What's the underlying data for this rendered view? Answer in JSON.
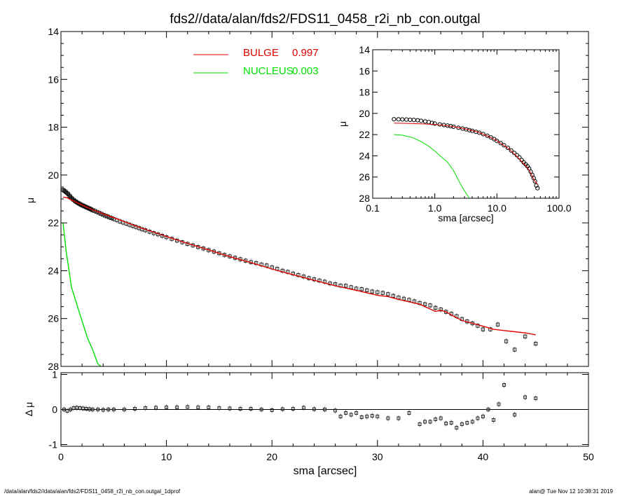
{
  "figure_title": "fds2//data/alan/fds2/FDS11_0458_r2i_nb_con.outgal",
  "footer": {
    "left": "/data/alan/fds2//data/alan/fds2/FDS11_0458_r2i_nb_con.outgal_1dprof",
    "right": "alan@  Tue Nov 12 10:38:31 2019"
  },
  "colors": {
    "bulge": "#e00000",
    "nucleus": "#00e000",
    "data": "#000000"
  },
  "chart_data": [
    {
      "name": "main_profile",
      "type": "line",
      "title": "",
      "xlabel": "",
      "ylabel": "μ",
      "xlim": [
        0,
        50
      ],
      "ylim": [
        28,
        14
      ],
      "y_inverted": true,
      "x_ticks_labeled": false,
      "y_ticks": [
        14,
        16,
        18,
        20,
        22,
        24,
        26,
        28
      ],
      "y_tick_labels": [
        "14",
        "16",
        "18",
        "20",
        "22",
        "24",
        "26",
        "28"
      ],
      "legend": [
        {
          "label": "BULGE",
          "value": "0.997",
          "color": "#e00000"
        },
        {
          "label": "NUCLEUS",
          "value": "0.003",
          "color": "#00e000"
        }
      ],
      "legend_placement": "top-center",
      "series": [
        {
          "name": "data",
          "style": "open-square-errorbars",
          "x": [
            0.2,
            0.3,
            0.4,
            0.5,
            0.6,
            0.7,
            0.8,
            0.9,
            1.0,
            1.1,
            1.2,
            1.3,
            1.4,
            1.5,
            1.6,
            1.7,
            1.8,
            1.9,
            2.0,
            2.1,
            2.2,
            2.3,
            2.4,
            2.5,
            2.6,
            2.7,
            2.8,
            2.9,
            3.0,
            3.2,
            3.4,
            3.6,
            3.8,
            4.0,
            4.2,
            4.4,
            4.6,
            4.8,
            5.0,
            5.3,
            5.6,
            5.9,
            6.2,
            6.5,
            6.8,
            7.1,
            7.4,
            7.7,
            8.0,
            8.4,
            8.8,
            9.2,
            9.6,
            10.0,
            10.5,
            11.0,
            11.5,
            12.0,
            12.5,
            13.0,
            13.5,
            14.0,
            14.5,
            15.0,
            15.5,
            16.0,
            16.5,
            17.0,
            17.5,
            18.0,
            18.5,
            19.0,
            19.5,
            20.0,
            20.5,
            21.0,
            21.5,
            22.0,
            22.5,
            23.0,
            23.5,
            24.0,
            24.5,
            25.0,
            25.5,
            26.0,
            26.5,
            27.0,
            27.5,
            28.0,
            28.5,
            29.0,
            29.5,
            30.0,
            30.5,
            31.0,
            31.5,
            32.0,
            32.5,
            33.0,
            33.5,
            34.0,
            34.5,
            35.0,
            35.5,
            36.0,
            36.5,
            37.0,
            37.5,
            38.0,
            38.5,
            39.0,
            39.5,
            40.0,
            40.7,
            41.4,
            42.2,
            43.0,
            44.0,
            45.0
          ],
          "y": [
            20.62,
            20.65,
            20.68,
            20.72,
            20.76,
            20.8,
            20.86,
            20.9,
            20.96,
            21.0,
            21.04,
            21.08,
            21.1,
            21.14,
            21.16,
            21.19,
            21.21,
            21.24,
            21.26,
            21.28,
            21.3,
            21.32,
            21.34,
            21.36,
            21.38,
            21.4,
            21.42,
            21.44,
            21.47,
            21.5,
            21.54,
            21.58,
            21.62,
            21.66,
            21.7,
            21.73,
            21.77,
            21.8,
            21.84,
            21.89,
            21.94,
            21.99,
            22.03,
            22.08,
            22.13,
            22.17,
            22.22,
            22.27,
            22.31,
            22.37,
            22.43,
            22.48,
            22.54,
            22.6,
            22.67,
            22.74,
            22.81,
            22.88,
            22.94,
            23.01,
            23.07,
            23.14,
            23.2,
            23.27,
            23.34,
            23.4,
            23.46,
            23.52,
            23.58,
            23.64,
            23.68,
            23.74,
            23.78,
            23.86,
            23.92,
            24.0,
            24.05,
            24.12,
            24.18,
            24.24,
            24.31,
            24.36,
            24.41,
            24.46,
            24.53,
            24.56,
            24.62,
            24.63,
            24.69,
            24.75,
            24.77,
            24.82,
            24.87,
            24.9,
            24.93,
            24.98,
            25.05,
            25.12,
            25.17,
            25.22,
            25.28,
            25.35,
            25.4,
            25.45,
            25.55,
            25.62,
            25.72,
            25.8,
            25.9,
            26.02,
            26.12,
            26.2,
            26.3,
            26.45,
            26.45,
            26.25,
            26.95,
            27.3,
            26.75,
            27.05
          ]
        },
        {
          "name": "BULGE",
          "style": "line",
          "color": "#e00000",
          "x": [
            0.2,
            0.6,
            1.0,
            1.5,
            2.0,
            2.5,
            3.0,
            4.0,
            5.0,
            6.0,
            7.0,
            8.0,
            9.0,
            10.0,
            12.0,
            14.0,
            16.0,
            18.0,
            20.0,
            22.0,
            24.0,
            26.0,
            28.0,
            30.0,
            31.0,
            32.0,
            33.0,
            34.0,
            35.0,
            35.5,
            36.0,
            36.5,
            37.0,
            38.0,
            39.0,
            40.0,
            41.0,
            42.0,
            43.0,
            44.0,
            45.0
          ],
          "y": [
            20.92,
            20.95,
            21.05,
            21.15,
            21.25,
            21.35,
            21.45,
            21.62,
            21.78,
            21.95,
            22.12,
            22.27,
            22.42,
            22.57,
            22.86,
            23.13,
            23.41,
            23.66,
            23.93,
            24.17,
            24.4,
            24.63,
            24.82,
            25.03,
            25.08,
            25.2,
            25.3,
            25.4,
            25.6,
            25.7,
            25.65,
            25.72,
            25.85,
            26.08,
            26.2,
            26.32,
            26.45,
            26.5,
            26.55,
            26.6,
            26.68
          ]
        },
        {
          "name": "NUCLEUS",
          "style": "line",
          "color": "#00e000",
          "x": [
            0.2,
            0.5,
            1.0,
            1.5,
            2.0,
            2.5,
            3.0,
            3.5,
            3.8
          ],
          "y": [
            22.0,
            23.2,
            24.7,
            25.4,
            26.1,
            26.8,
            27.3,
            27.9,
            28.0
          ]
        }
      ]
    },
    {
      "name": "residuals",
      "type": "scatter",
      "title": "",
      "xlabel": "sma [arcsec]",
      "ylabel": "Δ μ",
      "xlim": [
        0,
        50
      ],
      "ylim": [
        -1.05,
        1.05
      ],
      "grid": false,
      "x_ticks": [
        0,
        10,
        20,
        30,
        40,
        50
      ],
      "x_tick_labels": [
        "0",
        "10",
        "20",
        "30",
        "40",
        "50"
      ],
      "y_ticks": [
        -1,
        0,
        1
      ],
      "y_tick_labels": [
        "-1",
        "0",
        "1"
      ],
      "zero_line": true,
      "series": [
        {
          "name": "residual",
          "style": "open-square-errorbars",
          "x": [
            0.3,
            0.6,
            0.9,
            1.2,
            1.5,
            1.8,
            2.1,
            2.4,
            2.7,
            3.0,
            3.5,
            4.0,
            4.5,
            5.0,
            6.0,
            7.0,
            8.0,
            9.0,
            10.0,
            11.0,
            12.0,
            13.0,
            14.0,
            15.0,
            16.0,
            17.0,
            18.0,
            19.0,
            20.0,
            21.0,
            22.0,
            23.0,
            24.0,
            25.0,
            26.0,
            26.5,
            27.0,
            27.5,
            28.0,
            28.5,
            29.0,
            29.5,
            30.0,
            31.0,
            32.0,
            33.0,
            34.0,
            34.5,
            35.0,
            35.5,
            36.0,
            36.5,
            37.0,
            37.5,
            38.0,
            38.5,
            39.0,
            39.5,
            40.0,
            40.5,
            41.0,
            41.5,
            42.0,
            43.0,
            44.0,
            45.0
          ],
          "y": [
            0.0,
            -0.04,
            0.0,
            0.04,
            0.05,
            0.04,
            0.03,
            0.02,
            0.01,
            0.0,
            0.0,
            -0.01,
            0.0,
            0.0,
            0.0,
            0.02,
            0.04,
            0.05,
            0.06,
            0.06,
            0.07,
            0.06,
            0.06,
            0.04,
            0.03,
            0.02,
            0.02,
            0.0,
            -0.02,
            0.01,
            0.02,
            0.05,
            0.01,
            0.0,
            -0.03,
            -0.2,
            -0.1,
            -0.15,
            -0.1,
            -0.22,
            -0.2,
            -0.18,
            -0.2,
            -0.25,
            -0.25,
            -0.1,
            -0.42,
            -0.35,
            -0.35,
            -0.28,
            -0.25,
            -0.4,
            -0.38,
            -0.52,
            -0.42,
            -0.38,
            -0.35,
            -0.25,
            -0.2,
            0.0,
            -0.3,
            0.15,
            0.7,
            -0.15,
            0.35,
            0.32
          ]
        }
      ]
    },
    {
      "name": "inset_log_profile",
      "type": "line",
      "title": "",
      "xlabel": "sma [arcsec]",
      "ylabel": "μ",
      "x_scale": "log",
      "xlim": [
        0.1,
        100
      ],
      "ylim": [
        28,
        14
      ],
      "y_inverted": true,
      "x_ticks": [
        0.1,
        1,
        10,
        100
      ],
      "x_tick_labels": [
        "0.1",
        "1.0",
        "10.0",
        "100.0"
      ],
      "y_ticks": [
        14,
        16,
        18,
        20,
        22,
        24,
        26,
        28
      ],
      "y_tick_labels": [
        "14",
        "16",
        "18",
        "20",
        "22",
        "24",
        "26",
        "28"
      ],
      "series": [
        {
          "name": "data",
          "style": "open-circle",
          "x": [
            0.22,
            0.26,
            0.3,
            0.35,
            0.4,
            0.46,
            0.53,
            0.6,
            0.7,
            0.8,
            0.9,
            1.0,
            1.2,
            1.4,
            1.6,
            1.8,
            2.0,
            2.4,
            2.8,
            3.2,
            3.6,
            4.0,
            4.6,
            5.2,
            6.0,
            7.0,
            8.0,
            9.0,
            10.0,
            11.5,
            13.0,
            15.0,
            17.0,
            19.0,
            21.0,
            23.0,
            25.0,
            27.0,
            29.0,
            31.0,
            33.0,
            35.0,
            37.0,
            39.0,
            41.0,
            43.0,
            45.0
          ],
          "y": [
            20.55,
            20.56,
            20.57,
            20.58,
            20.6,
            20.62,
            20.65,
            20.7,
            20.76,
            20.82,
            20.9,
            20.96,
            21.04,
            21.1,
            21.15,
            21.2,
            21.26,
            21.35,
            21.43,
            21.5,
            21.58,
            21.64,
            21.74,
            21.82,
            21.95,
            22.11,
            22.27,
            22.42,
            22.6,
            22.8,
            23.0,
            23.25,
            23.5,
            23.73,
            23.94,
            24.15,
            24.4,
            24.62,
            24.8,
            24.98,
            25.2,
            25.5,
            25.8,
            26.1,
            26.4,
            26.8,
            27.05
          ]
        },
        {
          "name": "BULGE",
          "style": "line",
          "color": "#e00000",
          "x": [
            0.22,
            0.4,
            0.7,
            1.0,
            1.5,
            2.0,
            3.0,
            4.0,
            5.0,
            7.0,
            10.0,
            15.0,
            20.0,
            25.0,
            30.0,
            35.0,
            40.0,
            45.0
          ],
          "y": [
            20.92,
            20.95,
            21.0,
            21.05,
            21.15,
            21.25,
            21.45,
            21.62,
            21.78,
            22.12,
            22.57,
            23.27,
            23.93,
            24.53,
            25.03,
            25.6,
            26.32,
            26.68
          ]
        },
        {
          "name": "NUCLEUS",
          "style": "line",
          "color": "#00e000",
          "x": [
            0.22,
            0.3,
            0.45,
            0.6,
            0.8,
            1.0,
            1.3,
            1.6,
            2.0,
            2.5,
            3.0,
            3.6
          ],
          "y": [
            22.0,
            22.05,
            22.3,
            22.65,
            23.1,
            23.55,
            24.15,
            24.6,
            25.4,
            26.5,
            27.3,
            28.0
          ]
        }
      ]
    }
  ]
}
